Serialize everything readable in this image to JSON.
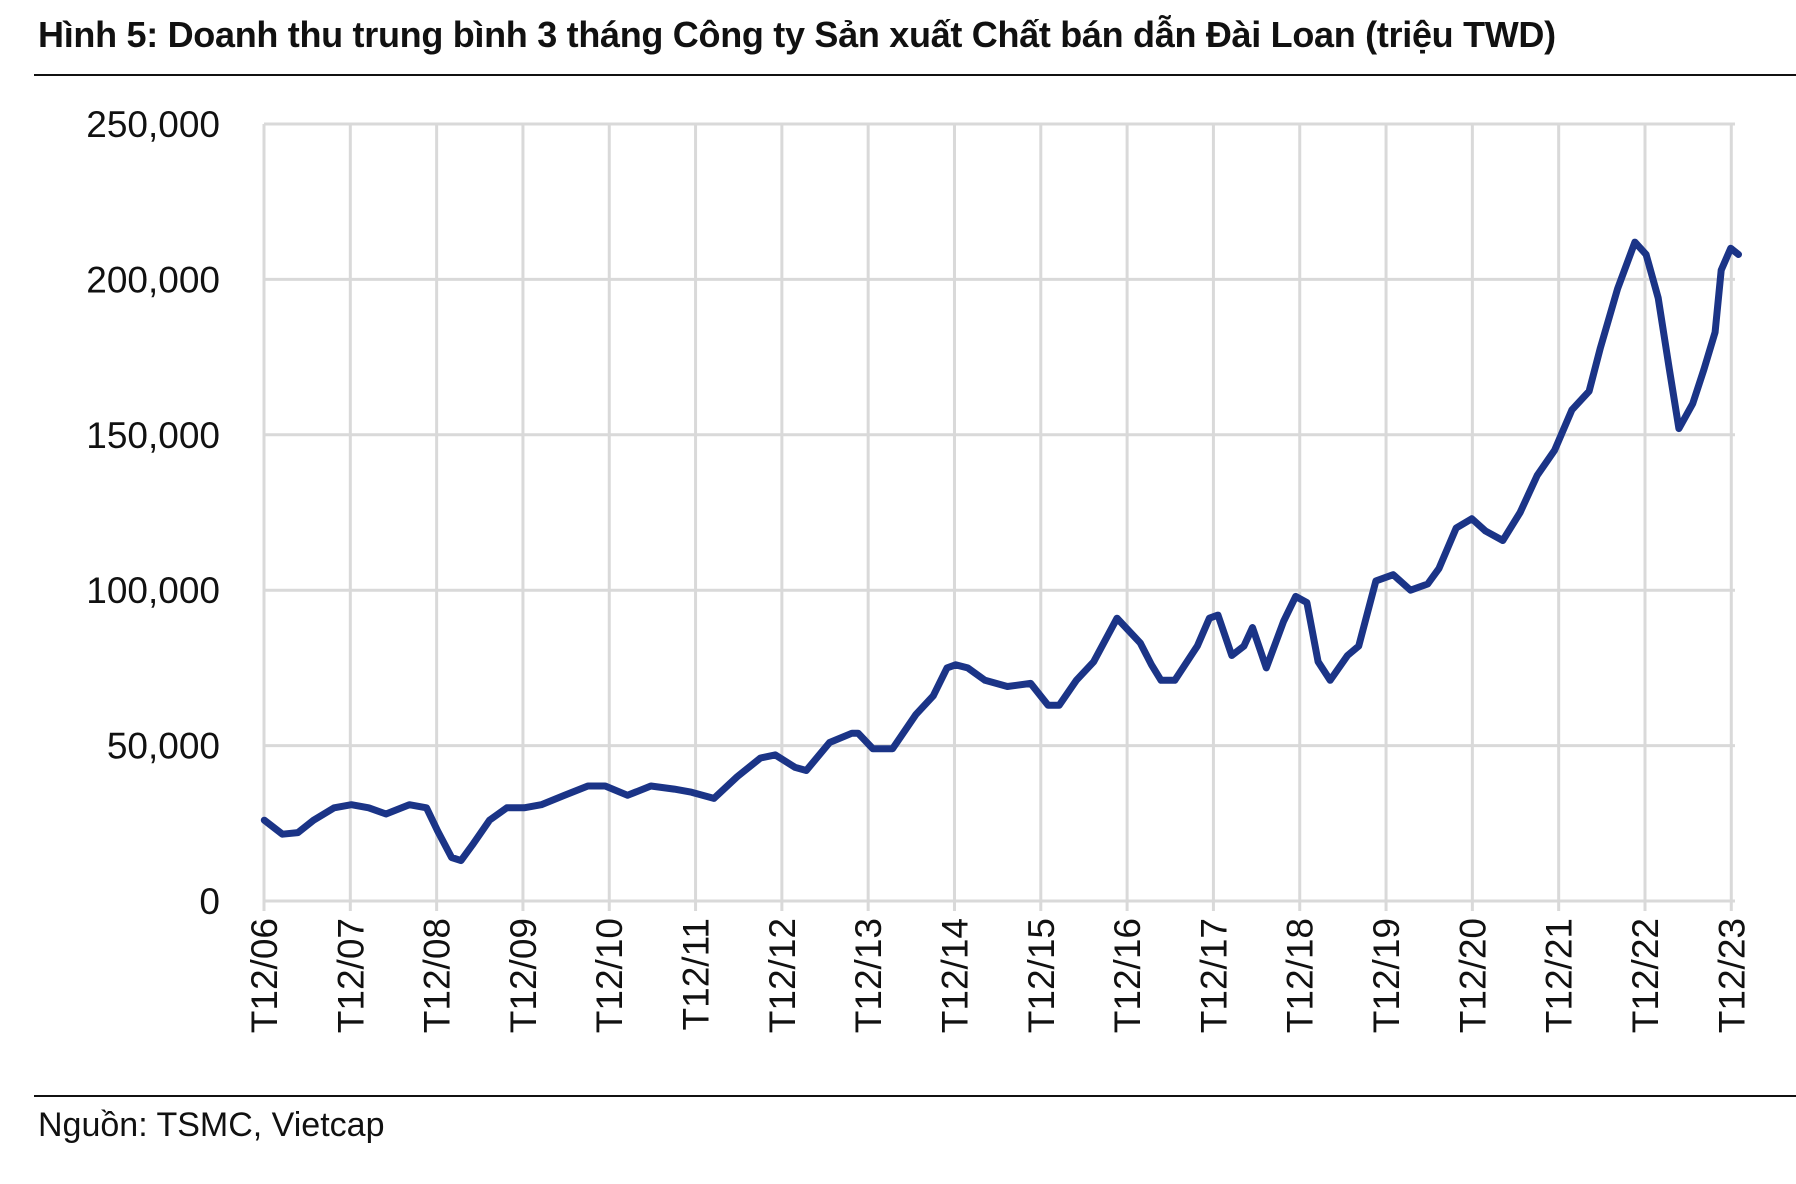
{
  "title": "Hình 5: Doanh thu trung bình 3 tháng Công ty Sản xuất Chất bán dẫn Đài Loan (triệu TWD)",
  "source": "Nguồn: TSMC, Vietcap",
  "chart_data": {
    "type": "line",
    "title": "Hình 5: Doanh thu trung bình 3 tháng Công ty Sản xuất Chất bán dẫn Đài Loan (triệu TWD)",
    "xlabel": "",
    "ylabel": "",
    "ylim": [
      0,
      250000
    ],
    "xlim": [
      2006.917,
      2023.96
    ],
    "grid": true,
    "legend": "none",
    "line_color": "#1b3487",
    "yticks": [
      0,
      50000,
      100000,
      150000,
      200000,
      250000
    ],
    "ytick_labels": [
      "0",
      "50,000",
      "100,000",
      "150,000",
      "200,000",
      "250,000"
    ],
    "xticks": [
      2006.917,
      2007.917,
      2008.917,
      2009.917,
      2010.917,
      2011.917,
      2012.917,
      2013.917,
      2014.917,
      2015.917,
      2016.917,
      2017.917,
      2018.917,
      2019.917,
      2020.917,
      2021.917,
      2022.917,
      2023.917
    ],
    "xtick_labels": [
      "T12/06",
      "T12/07",
      "T12/08",
      "T12/09",
      "T12/10",
      "T12/11",
      "T12/12",
      "T12/13",
      "T12/14",
      "T12/15",
      "T12/16",
      "T12/17",
      "T12/18",
      "T12/19",
      "T12/20",
      "T12/21",
      "T12/22",
      "T12/23"
    ],
    "x": [
      2006.92,
      2007.13,
      2007.31,
      2007.49,
      2007.73,
      2007.93,
      2008.13,
      2008.33,
      2008.6,
      2008.8,
      2008.93,
      2009.09,
      2009.2,
      2009.33,
      2009.53,
      2009.73,
      2009.93,
      2010.13,
      2010.4,
      2010.67,
      2010.87,
      2011.13,
      2011.4,
      2011.67,
      2011.87,
      2012.13,
      2012.4,
      2012.67,
      2012.84,
      2013.07,
      2013.2,
      2013.47,
      2013.73,
      2013.8,
      2013.97,
      2014.2,
      2014.47,
      2014.67,
      2014.83,
      2014.93,
      2015.07,
      2015.27,
      2015.53,
      2015.8,
      2016.0,
      2016.13,
      2016.33,
      2016.53,
      2016.8,
      2017.07,
      2017.2,
      2017.31,
      2017.47,
      2017.73,
      2017.87,
      2017.97,
      2018.13,
      2018.27,
      2018.37,
      2018.53,
      2018.73,
      2018.87,
      2019.0,
      2019.13,
      2019.27,
      2019.47,
      2019.6,
      2019.8,
      2020.0,
      2020.2,
      2020.4,
      2020.53,
      2020.73,
      2020.91,
      2021.07,
      2021.27,
      2021.47,
      2021.67,
      2021.87,
      2022.07,
      2022.27,
      2022.4,
      2022.6,
      2022.8,
      2022.93,
      2023.07,
      2023.2,
      2023.31,
      2023.47,
      2023.6,
      2023.73,
      2023.8,
      2023.91,
      2024.0
    ],
    "y": [
      26000,
      21500,
      22000,
      26000,
      30000,
      31000,
      30000,
      28000,
      31000,
      30000,
      22500,
      14000,
      13000,
      18000,
      26000,
      30000,
      30000,
      31000,
      34000,
      37000,
      37000,
      34000,
      37000,
      36000,
      35000,
      33000,
      40000,
      46000,
      47000,
      43000,
      42000,
      51000,
      54000,
      54000,
      49000,
      49000,
      60000,
      66000,
      75000,
      76000,
      75000,
      71000,
      69000,
      70000,
      63000,
      63000,
      71000,
      77000,
      91000,
      83000,
      76000,
      71000,
      71000,
      82000,
      91000,
      92000,
      79000,
      82000,
      88000,
      75000,
      90000,
      98000,
      96000,
      77000,
      71000,
      79000,
      82000,
      103000,
      105000,
      100000,
      102000,
      107000,
      120000,
      123000,
      119000,
      116000,
      125000,
      137000,
      145000,
      158000,
      164000,
      178000,
      197000,
      212000,
      208000,
      194000,
      171000,
      152000,
      160000,
      171000,
      183000,
      203000,
      210000,
      208000
    ]
  }
}
